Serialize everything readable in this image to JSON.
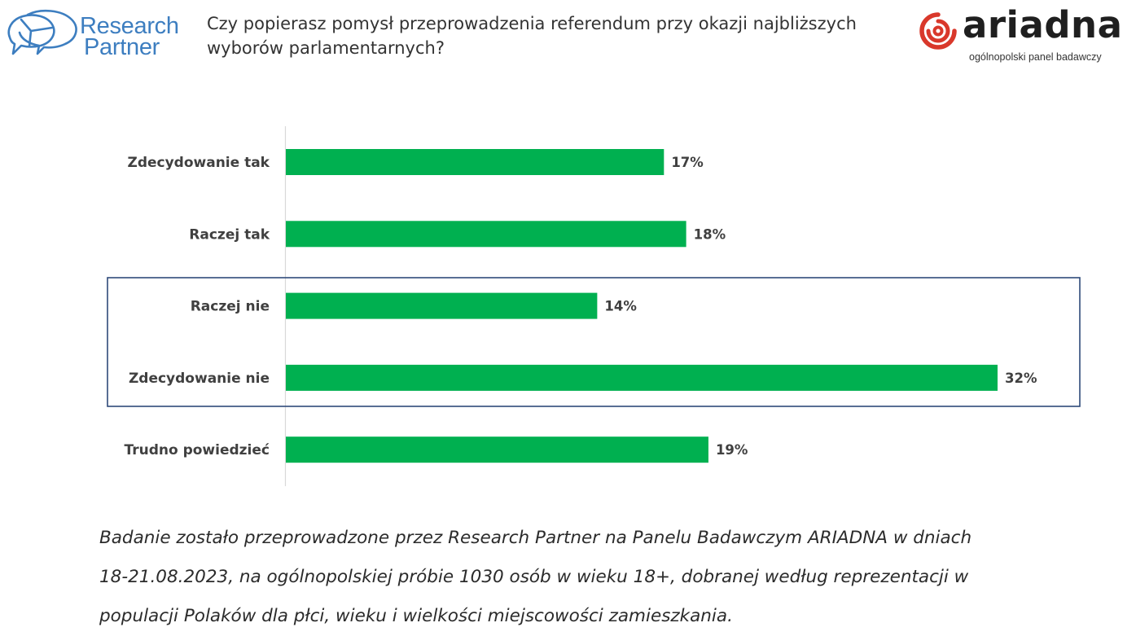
{
  "header": {
    "logo_left": {
      "line1": "Research",
      "line2": "Partner",
      "icon": "speech-bubbles-pie-icon"
    },
    "question_line1": "Czy popierasz pomysł przeprowadzenia referendum przy okazji najbliższych",
    "question_line2": "wyborów parlamentarnych?",
    "logo_right": {
      "name": "ariadna",
      "tagline": "ogólnopolski panel badawczy",
      "icon": "spiral-icon"
    }
  },
  "colors": {
    "bar": "#00b050",
    "highlight_box": "#2f4a7a",
    "axis": "#d9d9d9",
    "brand_blue": "#3d7ec0",
    "brand_red": "#d9382b"
  },
  "chart_data": {
    "type": "bar",
    "orientation": "horizontal",
    "title": "Czy popierasz pomysł przeprowadzenia referendum przy okazji najbliższych wyborów parlamentarnych?",
    "categories": [
      "Zdecydowanie tak",
      "Raczej tak",
      "Raczej nie",
      "Zdecydowanie nie",
      "Trudno powiedzieć"
    ],
    "values": [
      17,
      18,
      14,
      32,
      19
    ],
    "value_labels": [
      "17%",
      "18%",
      "14%",
      "32%",
      "19%"
    ],
    "unit": "%",
    "xlim": [
      0,
      32
    ],
    "grid": false,
    "legend": "none",
    "highlighted_categories": [
      "Raczej nie",
      "Zdecydowanie nie"
    ]
  },
  "footnote": {
    "line1": "Badanie zostało przeprowadzone przez Research Partner na Panelu Badawczym ARIADNA w dniach",
    "line2": "18-21.08.2023, na ogólnopolskiej próbie 1030 osób w wieku 18+, dobranej według reprezentacji w",
    "line3": "populacji Polaków dla płci, wieku i wielkości miejscowości zamieszkania."
  }
}
